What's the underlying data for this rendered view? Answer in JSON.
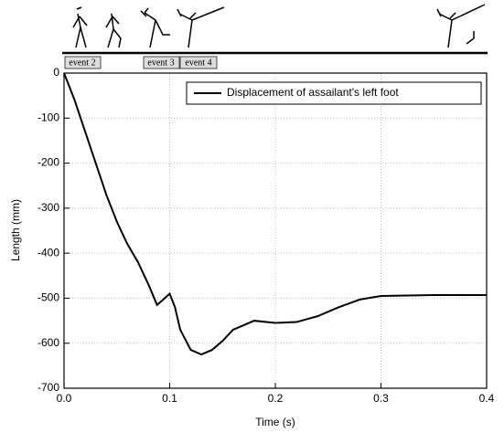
{
  "chart_data": {
    "type": "line",
    "x_label": "Time (s)",
    "y_label": "Length (mm)",
    "annotations": [
      "event 2",
      "event 3",
      "event 4"
    ],
    "xlim": [
      0,
      0.4
    ],
    "ylim": [
      -700,
      0
    ],
    "xticks": [
      {
        "value": 0,
        "label": "0.0"
      },
      0.1,
      0.2,
      0.3,
      0.4
    ],
    "yticks": [
      0,
      -100,
      -200,
      -300,
      -400,
      -500,
      -600,
      -700
    ],
    "grid": true,
    "legend": "upper right",
    "series": [
      {
        "name": "Displacement of assailant's left foot",
        "color": "#000000",
        "x": [
          0,
          0.01,
          0.02,
          0.03,
          0.04,
          0.05,
          0.06,
          0.07,
          0.08,
          0.088,
          0.093,
          0.1,
          0.105,
          0.11,
          0.12,
          0.13,
          0.14,
          0.15,
          0.16,
          0.18,
          0.2,
          0.22,
          0.24,
          0.26,
          0.28,
          0.3,
          0.35,
          0.4
        ],
        "values": [
          0,
          -60,
          -130,
          -200,
          -270,
          -330,
          -380,
          -420,
          -470,
          -515,
          -505,
          -490,
          -520,
          -570,
          -615,
          -625,
          -615,
          -595,
          -570,
          -550,
          -555,
          -553,
          -540,
          -520,
          -503,
          -495,
          -493,
          -493
        ]
      }
    ]
  }
}
